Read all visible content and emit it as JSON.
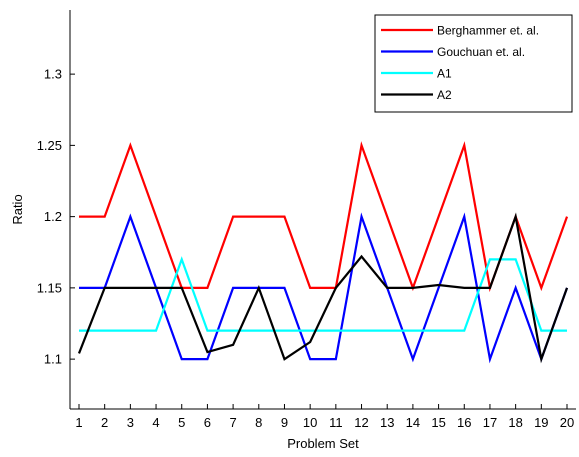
{
  "chart_data": {
    "type": "line",
    "xlabel": "Problem Set",
    "ylabel": "Ratio",
    "x": [
      1,
      2,
      3,
      4,
      5,
      6,
      7,
      8,
      9,
      10,
      11,
      12,
      13,
      14,
      15,
      16,
      17,
      18,
      19,
      20
    ],
    "xlim": [
      0.65,
      20.35
    ],
    "ylim": [
      1.065,
      1.345
    ],
    "yticks": [
      1.1,
      1.15,
      1.2,
      1.25,
      1.3
    ],
    "ytick_labels": [
      "1.1",
      "1.15",
      "1.2",
      "1.25",
      "1.3"
    ],
    "grid": false,
    "legend_position": "top-right",
    "series": [
      {
        "name": "Berghammer et. al.",
        "color": "#ff0000",
        "values": [
          1.2,
          1.2,
          1.25,
          1.2,
          1.15,
          1.15,
          1.2,
          1.2,
          1.2,
          1.15,
          1.15,
          1.25,
          1.2,
          1.15,
          1.2,
          1.25,
          1.15,
          1.2,
          1.15,
          1.2
        ]
      },
      {
        "name": "Gouchuan et. al.",
        "color": "#0000ff",
        "values": [
          1.15,
          1.15,
          1.2,
          1.15,
          1.1,
          1.1,
          1.15,
          1.15,
          1.15,
          1.1,
          1.1,
          1.2,
          1.15,
          1.1,
          1.15,
          1.2,
          1.1,
          1.15,
          1.1,
          1.15
        ]
      },
      {
        "name": "A1",
        "color": "#00ffff",
        "values": [
          1.12,
          1.12,
          1.12,
          1.12,
          1.17,
          1.12,
          1.12,
          1.12,
          1.12,
          1.12,
          1.12,
          1.12,
          1.12,
          1.12,
          1.12,
          1.12,
          1.17,
          1.17,
          1.12,
          1.12
        ]
      },
      {
        "name": "A2",
        "color": "#000000",
        "values": [
          1.104,
          1.15,
          1.15,
          1.15,
          1.15,
          1.105,
          1.11,
          1.15,
          1.1,
          1.112,
          1.15,
          1.172,
          1.15,
          1.15,
          1.152,
          1.15,
          1.15,
          1.2,
          1.1,
          1.15
        ]
      }
    ]
  }
}
